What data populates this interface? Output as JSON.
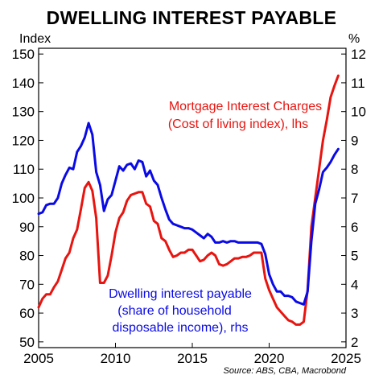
{
  "chart_data": {
    "type": "line",
    "title": "DWELLING INTEREST PAYABLE",
    "y_left_label": "Index",
    "y_right_label": "%",
    "source": "Source: ABS, CBA, Macrobond",
    "x_range": [
      2005,
      2025
    ],
    "x_ticks": [
      "2005",
      "2010",
      "2015",
      "2020",
      "2025"
    ],
    "y_left_range": [
      48,
      152
    ],
    "y_left_ticks": [
      "50",
      "60",
      "70",
      "80",
      "90",
      "100",
      "110",
      "120",
      "130",
      "140",
      "150"
    ],
    "y_right_range": [
      1.8,
      12.2
    ],
    "y_right_ticks": [
      "2",
      "3",
      "4",
      "5",
      "6",
      "7",
      "8",
      "9",
      "10",
      "11",
      "12"
    ],
    "grid": false,
    "legend": "inline annotations",
    "series": [
      {
        "name": "Mortgage Interest Charges (Cost of living index), lhs",
        "label_lines": [
          "Mortgage Interest Charges",
          "(Cost of living index), lhs"
        ],
        "axis": "left",
        "color": "#e8140f",
        "x": [
          2005.0,
          2005.25,
          2005.5,
          2005.75,
          2006.0,
          2006.25,
          2006.5,
          2006.75,
          2007.0,
          2007.25,
          2007.5,
          2007.75,
          2008.0,
          2008.25,
          2008.5,
          2008.75,
          2009.0,
          2009.25,
          2009.5,
          2009.75,
          2010.0,
          2010.25,
          2010.5,
          2010.75,
          2011.0,
          2011.25,
          2011.5,
          2011.75,
          2012.0,
          2012.25,
          2012.5,
          2012.75,
          2013.0,
          2013.25,
          2013.5,
          2013.75,
          2014.0,
          2014.25,
          2014.5,
          2014.75,
          2015.0,
          2015.25,
          2015.5,
          2015.75,
          2016.0,
          2016.25,
          2016.5,
          2016.75,
          2017.0,
          2017.25,
          2017.5,
          2017.75,
          2018.0,
          2018.25,
          2018.5,
          2018.75,
          2019.0,
          2019.25,
          2019.5,
          2019.75,
          2020.0,
          2020.25,
          2020.5,
          2020.75,
          2021.0,
          2021.25,
          2021.5,
          2021.75,
          2022.0,
          2022.25,
          2022.5,
          2022.75,
          2023.0,
          2023.25,
          2023.5,
          2023.75,
          2024.0,
          2024.25,
          2024.5
        ],
        "values": [
          62,
          65,
          66.5,
          66.5,
          69,
          71,
          75,
          79,
          81,
          86,
          89,
          96,
          103.5,
          105.5,
          102.5,
          93,
          70.5,
          70.5,
          73,
          80,
          88,
          93,
          95,
          99,
          101,
          101.5,
          102,
          102,
          98,
          97,
          92,
          91,
          86,
          85,
          82,
          79.5,
          80,
          81,
          81,
          82,
          82,
          80,
          78,
          78.5,
          80,
          81,
          80,
          77,
          76.5,
          77,
          78,
          79,
          79,
          79.5,
          79.5,
          80,
          81,
          81,
          81,
          72,
          68,
          65,
          62,
          60.5,
          59,
          57.5,
          57,
          56,
          56,
          57,
          68,
          90,
          100,
          110,
          120,
          127,
          135,
          139,
          142.5
        ]
      },
      {
        "name": "Dwelling interest payable (share of household disposable income), rhs",
        "label_lines": [
          "Dwelling interest payable",
          "(share of household",
          "disposable income), rhs"
        ],
        "axis": "right",
        "color": "#0a0ae6",
        "x": [
          2005.0,
          2005.25,
          2005.5,
          2005.75,
          2006.0,
          2006.25,
          2006.5,
          2006.75,
          2007.0,
          2007.25,
          2007.5,
          2007.75,
          2008.0,
          2008.25,
          2008.5,
          2008.75,
          2009.0,
          2009.25,
          2009.5,
          2009.75,
          2010.0,
          2010.25,
          2010.5,
          2010.75,
          2011.0,
          2011.25,
          2011.5,
          2011.75,
          2012.0,
          2012.25,
          2012.5,
          2012.75,
          2013.0,
          2013.25,
          2013.5,
          2013.75,
          2014.0,
          2014.25,
          2014.5,
          2014.75,
          2015.0,
          2015.25,
          2015.5,
          2015.75,
          2016.0,
          2016.25,
          2016.5,
          2016.75,
          2017.0,
          2017.25,
          2017.5,
          2017.75,
          2018.0,
          2018.25,
          2018.5,
          2018.75,
          2019.0,
          2019.25,
          2019.5,
          2019.75,
          2020.0,
          2020.25,
          2020.5,
          2020.75,
          2021.0,
          2021.25,
          2021.5,
          2021.75,
          2022.0,
          2022.25,
          2022.5,
          2022.75,
          2023.0,
          2023.25,
          2023.5,
          2023.75,
          2024.0,
          2024.25,
          2024.5
        ],
        "values": [
          6.45,
          6.5,
          6.75,
          6.8,
          6.8,
          7.0,
          7.5,
          7.8,
          8.05,
          8.0,
          8.6,
          8.8,
          9.1,
          9.6,
          9.2,
          7.9,
          7.45,
          6.55,
          6.95,
          7.1,
          7.6,
          8.1,
          7.95,
          8.15,
          8.2,
          8.0,
          8.3,
          8.25,
          7.75,
          7.95,
          7.6,
          7.45,
          7.0,
          6.6,
          6.25,
          6.1,
          6.05,
          6.0,
          5.95,
          5.95,
          5.9,
          5.8,
          5.7,
          5.6,
          5.75,
          5.65,
          5.45,
          5.45,
          5.5,
          5.45,
          5.5,
          5.5,
          5.45,
          5.45,
          5.45,
          5.45,
          5.45,
          5.45,
          5.4,
          5.05,
          4.35,
          4.0,
          3.75,
          3.75,
          3.6,
          3.6,
          3.55,
          3.4,
          3.35,
          3.3,
          3.75,
          5.5,
          6.8,
          7.3,
          7.9,
          8.05,
          8.25,
          8.5,
          8.7
        ]
      }
    ]
  }
}
